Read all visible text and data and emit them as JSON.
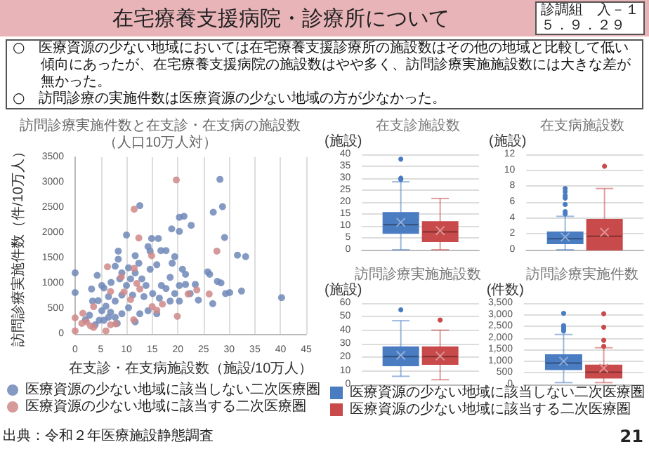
{
  "chart_data": [
    {
      "type": "other",
      "title": "在宅療養支援病院・診療所について",
      "annotations": [
        "診調組　入－１",
        "５．９．２９",
        "○　医療資源の少ない地域においては在宅療養支援診療所の施設数はその他の地域と比較して低い傾向にあったが、在宅療養支援病院の施設数はやや多く、訪問診療実施施設数には大きな差が無かった。",
        "○　訪問診療の実施件数は医療資源の少ない地域の方が少なかった。",
        "21"
      ]
    },
    {
      "type": "scatter",
      "title": "訪問診療実施件数と在支診・在支病の施設数",
      "subtitle": "（人口10万人対）",
      "xlabel": "在支診・在支病施設数（施設/10万人）",
      "ylabel": "訪問診療実施件数（件/10万人）",
      "xlim": [
        0,
        45
      ],
      "xticks": [
        0,
        5,
        10,
        15,
        20,
        25,
        30,
        35,
        40,
        45
      ],
      "ylim": [
        0,
        3500
      ],
      "yticks": [
        0,
        500,
        1000,
        1500,
        2000,
        2500,
        3000,
        3500
      ],
      "grid": "x",
      "legend": "bottom",
      "marker": "circle",
      "annotations": [
        "出典：令和２年医療施設静態調査"
      ],
      "series": [
        {
          "name": "医療資源の少ない地域に該当しない二次医療圏",
          "color": "#7088b8",
          "x": [
            0,
            0,
            28.2,
            28.7,
            12.6,
            10,
            20.3,
            21.2,
            22.6,
            18.8,
            20.3,
            26.9,
            29.1,
            31.6,
            33.2,
            40.2,
            32.4,
            30.1,
            29.3,
            27.7,
            28.4,
            26.8,
            25.8,
            26.2,
            24,
            23.4,
            21.5,
            20.9,
            19.4,
            17.7,
            14.9,
            16.2,
            16.7,
            14.2,
            14.6,
            11.7,
            12.4,
            8.4,
            7.8,
            8.4,
            4.3,
            5.6,
            3.2,
            4.5,
            5.2,
            2.8,
            2,
            3.9,
            5.6,
            6.9,
            7.8,
            9.1,
            10,
            10.8,
            11.7,
            13,
            13.8,
            15.1,
            16.4,
            16.8,
            17.7,
            18.5,
            19.4,
            20.3,
            21.5,
            22.4,
            10.4,
            9.1,
            7.8,
            6.5,
            6,
            14.2,
            15.9,
            12.6,
            11.7,
            8.7,
            7,
            11.2,
            13.4,
            14.6,
            15.9,
            10.4,
            9.1,
            5.2,
            6.5,
            3.4,
            18.9,
            18.5,
            20.3,
            4.7,
            8.2
          ],
          "values": [
            1210,
            820,
            3060,
            2520,
            2540,
            1960,
            2310,
            2330,
            2150,
            2080,
            2030,
            2410,
            1910,
            1560,
            1530,
            720,
            850,
            820,
            800,
            1040,
            1010,
            600,
            1230,
            1180,
            670,
            980,
            1180,
            1280,
            1530,
            1650,
            1890,
            1890,
            1650,
            1730,
            1640,
            1550,
            1400,
            1640,
            1340,
            1480,
            1160,
            910,
            890,
            660,
            460,
            370,
            280,
            180,
            270,
            430,
            650,
            770,
            960,
            1090,
            1210,
            1090,
            960,
            800,
            710,
            960,
            900,
            1120,
            800,
            650,
            980,
            800,
            520,
            400,
            330,
            330,
            550,
            460,
            400,
            400,
            240,
            1090,
            1020,
            770,
            740,
            1280,
            1370,
            1310,
            1210,
            960,
            740,
            650,
            1400,
            650,
            960,
            270,
            210
          ]
        },
        {
          "name": "医療資源の少ない地域に該当する二次医療圏",
          "color": "#d08888",
          "x": [
            0,
            0,
            1.5,
            2.2,
            3,
            3.6,
            1.3,
            6,
            6.9,
            3.6,
            6.3,
            9,
            11.5,
            12.4,
            12,
            10.8,
            11.4,
            15,
            15.9,
            14.9,
            17,
            19.7,
            19.9,
            22,
            23.7,
            26.1,
            27.6,
            11.5,
            6.9,
            9.5,
            12.6,
            7.9
          ],
          "values": [
            60,
            320,
            410,
            240,
            160,
            130,
            210,
            60,
            180,
            540,
            1330,
            1130,
            2470,
            1900,
            1000,
            680,
            280,
            540,
            470,
            1550,
            590,
            3050,
            350,
            790,
            870,
            790,
            1640,
            1300,
            840,
            830,
            890,
            200
          ]
        }
      ]
    },
    {
      "type": "box",
      "title": "在支診施設数",
      "ylabel": "(施設)",
      "categories": [
        null
      ],
      "ylim": [
        0,
        40
      ],
      "yticks": [
        0,
        5,
        10,
        15,
        20,
        25,
        30,
        35,
        40
      ],
      "grid": "y",
      "series": [
        {
          "color": "#4a7cc2",
          "boxes": [
            {
              "low": 0,
              "q1": 7,
              "median": 10.5,
              "q3": 15.5,
              "high": 28.5,
              "mean": 11.5,
              "outliers": [
                29.5,
                30,
                38
              ]
            }
          ]
        },
        {
          "color": "#c84a4a",
          "boxes": [
            {
              "low": 0,
              "q1": 3.5,
              "median": 7.5,
              "q3": 11.7,
              "high": 21.5,
              "mean": 8
            }
          ]
        }
      ]
    },
    {
      "type": "box",
      "title": "在支病施設数",
      "ylabel": "(施設)",
      "categories": [
        null
      ],
      "ylim": [
        0,
        12
      ],
      "yticks": [
        0,
        2,
        4,
        6,
        8,
        10,
        12
      ],
      "grid": "y",
      "series": [
        {
          "color": "#4a7cc2",
          "boxes": [
            {
              "low": 0,
              "q1": 0.8,
              "median": 1.4,
              "q3": 2.2,
              "high": 4.2,
              "mean": 1.6,
              "outliers": [
                4.5,
                4.8,
                5.7,
                6.5,
                6.8,
                7.3,
                7.7
              ]
            }
          ]
        },
        {
          "color": "#c84a4a",
          "boxes": [
            {
              "low": 0,
              "q1": 0,
              "median": 1.7,
              "q3": 3.8,
              "high": 7.7,
              "mean": 2.2,
              "outliers": [
                10.5
              ]
            }
          ]
        }
      ]
    },
    {
      "type": "box",
      "title": "訪問診療実施施設数",
      "ylabel": "(施設)",
      "categories": [
        null
      ],
      "ylim": [
        0,
        60
      ],
      "yticks": [
        0,
        10,
        20,
        30,
        40,
        50,
        60
      ],
      "grid": "y",
      "series": [
        {
          "color": "#4a7cc2",
          "boxes": [
            {
              "low": 6,
              "q1": 14,
              "median": 20.5,
              "q3": 27.5,
              "high": 47,
              "mean": 21.5,
              "outliers": [
                55
              ]
            }
          ]
        },
        {
          "color": "#c84a4a",
          "boxes": [
            {
              "low": 3.5,
              "q1": 15,
              "median": 20.5,
              "q3": 27.5,
              "high": 40,
              "mean": 21,
              "outliers": [
                47.5
              ]
            }
          ]
        }
      ]
    },
    {
      "type": "box",
      "title": "訪問診療実施件数",
      "ylabel": "(件数)",
      "categories": [
        null
      ],
      "ylim": [
        0,
        3500
      ],
      "yticks": [
        0,
        500,
        {
          "value": 1000,
          "label": "1,000"
        },
        {
          "value": 1500,
          "label": "1,500"
        },
        {
          "value": 2000,
          "label": "2,000"
        },
        {
          "value": 2500,
          "label": "2,500"
        },
        {
          "value": 3000,
          "label": "3,000"
        },
        {
          "value": 3500,
          "label": "3,500"
        }
      ],
      "grid": "y",
      "legend": "bottom",
      "series": [
        {
          "name": "医療資源の少ない地域に該当しない二次医療圏",
          "color": "#4a7cc2",
          "boxes": [
            {
              "low": 80,
              "q1": 650,
              "median": 920,
              "q3": 1270,
              "high": 2150,
              "mean": 1000,
              "outliers": [
                2300,
                2380,
                2450,
                2530,
                3060
              ]
            }
          ]
        },
        {
          "name": "医療資源の少ない地域に該当する二次医療圏",
          "color": "#c84a4a",
          "boxes": [
            {
              "low": 80,
              "q1": 290,
              "median": 530,
              "q3": 820,
              "high": 1580,
              "mean": 700,
              "outliers": [
                1640,
                1900,
                2460,
                3040
              ]
            }
          ]
        }
      ]
    }
  ]
}
